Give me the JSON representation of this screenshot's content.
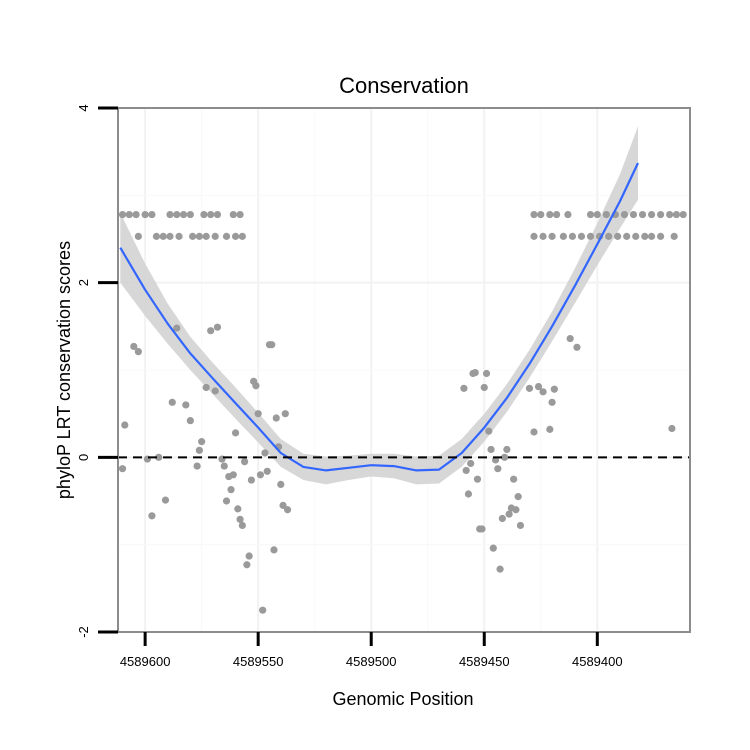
{
  "chart_data": {
    "type": "scatter",
    "title": "Conservation",
    "xlabel": "Genomic Position",
    "ylabel": "phyloP LRT conservation scores",
    "x_reversed": true,
    "xlim": [
      4589612,
      4589359
    ],
    "ylim": [
      -2,
      4
    ],
    "xticks": [
      4589600,
      4589550,
      4589500,
      4589450,
      4589400
    ],
    "xtick_labels": [
      "4589600",
      "4589550",
      "4589500",
      "4589450",
      "4589400"
    ],
    "yticks": [
      -2,
      0,
      2,
      4
    ],
    "ytick_labels": [
      "-2",
      "0",
      "2",
      "4"
    ],
    "reference_line": {
      "y": 0,
      "style": "dashed"
    },
    "grid": true,
    "colors": {
      "points": "#9a9a9a",
      "smooth_line": "#3366ff",
      "ribbon": "#d3d3d3",
      "panel_border": "#8c8c8c",
      "gridline": "#f2f2f2",
      "reference": "#000000"
    },
    "series": [
      {
        "name": "scores",
        "kind": "points",
        "points": [
          [
            4589610,
            2.78
          ],
          [
            4589607,
            2.78
          ],
          [
            4589604,
            2.78
          ],
          [
            4589600,
            2.78
          ],
          [
            4589597,
            2.78
          ],
          [
            4589589,
            2.78
          ],
          [
            4589586,
            2.78
          ],
          [
            4589583,
            2.78
          ],
          [
            4589580,
            2.78
          ],
          [
            4589574,
            2.78
          ],
          [
            4589571,
            2.78
          ],
          [
            4589568,
            2.78
          ],
          [
            4589561,
            2.78
          ],
          [
            4589558,
            2.78
          ],
          [
            4589603,
            2.53
          ],
          [
            4589595,
            2.53
          ],
          [
            4589592,
            2.53
          ],
          [
            4589589,
            2.53
          ],
          [
            4589585,
            2.53
          ],
          [
            4589579,
            2.53
          ],
          [
            4589576,
            2.53
          ],
          [
            4589573,
            2.53
          ],
          [
            4589569,
            2.53
          ],
          [
            4589564,
            2.53
          ],
          [
            4589560,
            2.53
          ],
          [
            4589557,
            2.53
          ],
          [
            4589428,
            2.78
          ],
          [
            4589425,
            2.78
          ],
          [
            4589421,
            2.78
          ],
          [
            4589418,
            2.78
          ],
          [
            4589413,
            2.78
          ],
          [
            4589403,
            2.78
          ],
          [
            4589400,
            2.78
          ],
          [
            4589396,
            2.78
          ],
          [
            4589392,
            2.78
          ],
          [
            4589388,
            2.78
          ],
          [
            4589384,
            2.78
          ],
          [
            4589380,
            2.78
          ],
          [
            4589376,
            2.78
          ],
          [
            4589372,
            2.78
          ],
          [
            4589368,
            2.78
          ],
          [
            4589365,
            2.78
          ],
          [
            4589362,
            2.78
          ],
          [
            4589428,
            2.53
          ],
          [
            4589424,
            2.53
          ],
          [
            4589420,
            2.53
          ],
          [
            4589415,
            2.53
          ],
          [
            4589411,
            2.53
          ],
          [
            4589407,
            2.53
          ],
          [
            4589403,
            2.53
          ],
          [
            4589399,
            2.53
          ],
          [
            4589395,
            2.53
          ],
          [
            4589391,
            2.53
          ],
          [
            4589387,
            2.53
          ],
          [
            4589383,
            2.53
          ],
          [
            4589379,
            2.53
          ],
          [
            4589376,
            2.53
          ],
          [
            4589372,
            2.53
          ],
          [
            4589366,
            2.53
          ],
          [
            4589610,
            -0.13
          ],
          [
            4589609,
            0.37
          ],
          [
            4589605,
            1.27
          ],
          [
            4589603,
            1.21
          ],
          [
            4589599,
            -0.02
          ],
          [
            4589597,
            -0.67
          ],
          [
            4589594,
            0.0
          ],
          [
            4589591,
            -0.49
          ],
          [
            4589588,
            0.63
          ],
          [
            4589586,
            1.48
          ],
          [
            4589582,
            0.6
          ],
          [
            4589580,
            0.42
          ],
          [
            4589577,
            -0.1
          ],
          [
            4589576,
            0.08
          ],
          [
            4589575,
            0.18
          ],
          [
            4589573,
            0.8
          ],
          [
            4589571,
            1.45
          ],
          [
            4589569,
            0.76
          ],
          [
            4589568,
            1.49
          ],
          [
            4589566,
            -0.02
          ],
          [
            4589565,
            -0.1
          ],
          [
            4589564,
            -0.5
          ],
          [
            4589563,
            -0.22
          ],
          [
            4589562,
            -0.37
          ],
          [
            4589561,
            -0.2
          ],
          [
            4589560,
            0.28
          ],
          [
            4589559,
            -0.59
          ],
          [
            4589558,
            -0.71
          ],
          [
            4589557,
            -0.78
          ],
          [
            4589556,
            -0.05
          ],
          [
            4589555,
            -1.23
          ],
          [
            4589554,
            -1.13
          ],
          [
            4589553,
            -0.26
          ],
          [
            4589552,
            0.87
          ],
          [
            4589551,
            0.82
          ],
          [
            4589550,
            0.5
          ],
          [
            4589549,
            -0.2
          ],
          [
            4589548,
            -1.75
          ],
          [
            4589547,
            0.05
          ],
          [
            4589546,
            -0.16
          ],
          [
            4589545,
            1.29
          ],
          [
            4589544,
            1.29
          ],
          [
            4589543,
            -1.06
          ],
          [
            4589542,
            0.45
          ],
          [
            4589541,
            0.12
          ],
          [
            4589540,
            -0.31
          ],
          [
            4589539,
            -0.55
          ],
          [
            4589538,
            0.5
          ],
          [
            4589537,
            -0.6
          ],
          [
            4589459,
            0.79
          ],
          [
            4589458,
            -0.15
          ],
          [
            4589457,
            -0.42
          ],
          [
            4589456,
            -0.07
          ],
          [
            4589455,
            0.96
          ],
          [
            4589454,
            0.97
          ],
          [
            4589453,
            -0.25
          ],
          [
            4589452,
            -0.82
          ],
          [
            4589451,
            -0.82
          ],
          [
            4589450,
            0.8
          ],
          [
            4589449,
            0.96
          ],
          [
            4589448,
            0.3
          ],
          [
            4589447,
            0.09
          ],
          [
            4589446,
            -1.04
          ],
          [
            4589445,
            -0.03
          ],
          [
            4589444,
            -0.13
          ],
          [
            4589443,
            -1.28
          ],
          [
            4589442,
            -0.7
          ],
          [
            4589441,
            0.0
          ],
          [
            4589440,
            0.09
          ],
          [
            4589439,
            -0.65
          ],
          [
            4589438,
            -0.58
          ],
          [
            4589437,
            -0.25
          ],
          [
            4589436,
            -0.6
          ],
          [
            4589435,
            -0.45
          ],
          [
            4589434,
            -0.78
          ],
          [
            4589430,
            0.79
          ],
          [
            4589428,
            0.29
          ],
          [
            4589426,
            0.81
          ],
          [
            4589424,
            0.75
          ],
          [
            4589421,
            0.32
          ],
          [
            4589420,
            0.63
          ],
          [
            4589419,
            0.78
          ],
          [
            4589412,
            1.36
          ],
          [
            4589409,
            1.26
          ],
          [
            4589367,
            0.33
          ]
        ]
      },
      {
        "name": "loess fit",
        "kind": "smooth",
        "points": [
          [
            4589611,
            2.4
          ],
          [
            4589600,
            1.92
          ],
          [
            4589590,
            1.53
          ],
          [
            4589580,
            1.19
          ],
          [
            4589570,
            0.9
          ],
          [
            4589560,
            0.62
          ],
          [
            4589550,
            0.34
          ],
          [
            4589540,
            0.05
          ],
          [
            4589530,
            -0.11
          ],
          [
            4589520,
            -0.15
          ],
          [
            4589510,
            -0.12
          ],
          [
            4589500,
            -0.09
          ],
          [
            4589490,
            -0.1
          ],
          [
            4589480,
            -0.15
          ],
          [
            4589470,
            -0.14
          ],
          [
            4589460,
            0.05
          ],
          [
            4589450,
            0.34
          ],
          [
            4589440,
            0.68
          ],
          [
            4589430,
            1.07
          ],
          [
            4589420,
            1.5
          ],
          [
            4589410,
            1.96
          ],
          [
            4589400,
            2.44
          ],
          [
            4589390,
            2.93
          ],
          [
            4589382,
            3.37
          ]
        ],
        "lower": [
          2.0,
          1.62,
          1.3,
          1.0,
          0.72,
          0.44,
          0.17,
          -0.11,
          -0.26,
          -0.31,
          -0.26,
          -0.22,
          -0.24,
          -0.31,
          -0.3,
          -0.11,
          0.18,
          0.52,
          0.91,
          1.33,
          1.76,
          2.2,
          2.62,
          2.95
        ],
        "upper": [
          2.8,
          2.22,
          1.76,
          1.38,
          1.08,
          0.8,
          0.51,
          0.21,
          0.04,
          0.01,
          0.02,
          0.04,
          0.04,
          0.01,
          0.02,
          0.21,
          0.5,
          0.84,
          1.23,
          1.67,
          2.16,
          2.68,
          3.24,
          3.79
        ]
      }
    ]
  }
}
